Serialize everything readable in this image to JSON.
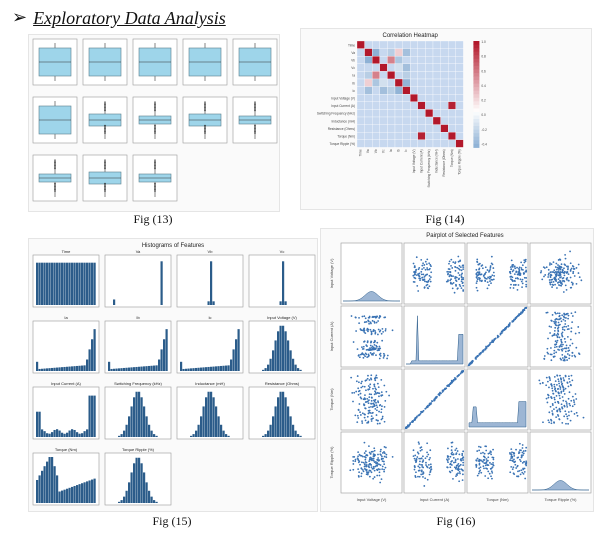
{
  "heading": {
    "bullet": "➢",
    "text": "Exploratory Data Analysis"
  },
  "captions": {
    "fig13": "Fig (13)",
    "fig14": "Fig (14)",
    "fig15": "Fig (15)",
    "fig16": "Fig (16)"
  },
  "fig14": {
    "title": "Correlation Heatmap",
    "row_labels": [
      "Time",
      "Va",
      "Vb",
      "Vc",
      "Ia",
      "Ib",
      "Ic",
      "Input Voltage (V)",
      "Input Current (A)",
      "Switching Frequency (kHz)",
      "Inductance (mH)",
      "Resistance (Ohms)",
      "Torque (Nm)",
      "Torque Ripple (%)"
    ],
    "colorbar_ticks": [
      "1.0",
      "0.8",
      "0.6",
      "0.4",
      "0.2",
      "0.0",
      "-0.2",
      "-0.4"
    ]
  },
  "fig15": {
    "title": "Histograms of Features",
    "panels": [
      "Time",
      "Va",
      "Vb",
      "Vc",
      "Ia",
      "Ib",
      "Ic",
      "Input Voltage (V)",
      "Input Current (A)",
      "Switching Frequency (kHz)",
      "Inductance (mH)",
      "Resistance (Ohms)",
      "Torque (Nm)",
      "Torque Ripple (%)"
    ]
  },
  "fig16": {
    "title": "Pairplot of Selected Features",
    "vars": [
      "Input Voltage (V)",
      "Input Current (A)",
      "Torque (Nm)",
      "Torque Ripple (%)"
    ]
  },
  "colors": {
    "box_fill": "#9ed5ea",
    "hist_bar": "#2b5c8a",
    "scatter": "#3a73b4",
    "heat_pos": "#b2182b",
    "heat_neg": "#2166ac"
  }
}
